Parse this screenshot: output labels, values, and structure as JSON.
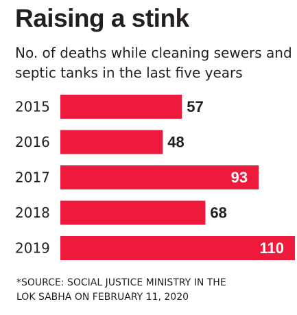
{
  "title": "Raising a stink",
  "subtitle": "No. of deaths while cleaning sewers and septic tanks in the last five years",
  "source_line1": "*SOURCE: SOCIAL JUSTICE MINISTRY IN THE",
  "source_line2": "LOK SABHA ON FEBRUARY 11, 2020",
  "colors": {
    "bar": "#ee1a3b",
    "text": "#231f20",
    "label_inside": "#ffffff"
  },
  "chart_data": {
    "type": "bar",
    "orientation": "horizontal",
    "categories": [
      "2015",
      "2016",
      "2017",
      "2018",
      "2019"
    ],
    "values": [
      57,
      48,
      93,
      68,
      110
    ],
    "xlim": [
      0,
      110
    ],
    "grid": false,
    "legend": "none"
  }
}
